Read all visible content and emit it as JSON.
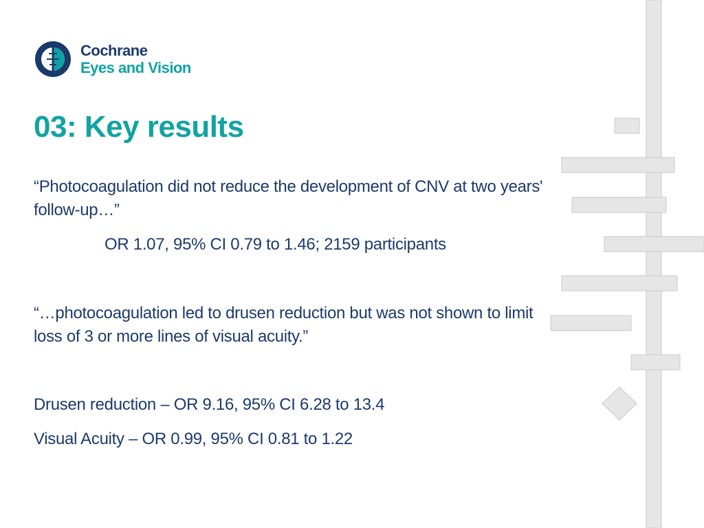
{
  "brand": {
    "line1": "Cochrane",
    "line2": "Eyes and Vision",
    "colors": {
      "navy": "#1a3a6c",
      "teal": "#0ea3a3"
    }
  },
  "slide": {
    "title": "03: Key results",
    "quote1": "“Photocoagulation did not reduce the development of CNV at two years' follow-up…”",
    "stat1": "OR 1.07, 95% CI 0.79 to 1.46; 2159 participants",
    "quote2": "“…photocoagulation led to drusen reduction but was not shown to limit loss of 3 or more lines of visual acuity.”",
    "result1": "Drusen reduction – OR 9.16, 95% CI 6.28 to 13.4",
    "result2": "Visual Acuity – OR 0.99, 95% CI 0.81 to 1.22"
  }
}
